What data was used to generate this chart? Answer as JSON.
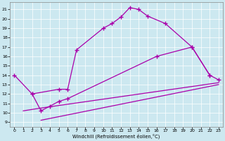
{
  "xlabel": "Windchill (Refroidissement éolien,°C)",
  "bg_color": "#cce8f0",
  "line_color": "#aa00aa",
  "xlim": [
    -0.5,
    23.5
  ],
  "ylim": [
    8.5,
    21.8
  ],
  "yticks": [
    9,
    10,
    11,
    12,
    13,
    14,
    15,
    16,
    17,
    18,
    19,
    20,
    21
  ],
  "xticks": [
    0,
    1,
    2,
    3,
    4,
    5,
    6,
    7,
    8,
    9,
    10,
    11,
    12,
    13,
    14,
    15,
    16,
    17,
    18,
    19,
    20,
    21,
    22,
    23
  ],
  "c1x": [
    0,
    2,
    5,
    6,
    7,
    10,
    11,
    12,
    13,
    14,
    15,
    17,
    20,
    22
  ],
  "c1y": [
    14.0,
    12.0,
    12.5,
    12.5,
    16.7,
    19.0,
    19.5,
    20.2,
    21.2,
    21.0,
    20.3,
    19.5,
    17.0,
    14.0
  ],
  "c2x": [
    2,
    3,
    4,
    5,
    6,
    16,
    20,
    22,
    23
  ],
  "c2y": [
    12.0,
    10.2,
    10.7,
    11.2,
    11.5,
    16.0,
    17.0,
    14.0,
    13.5
  ],
  "c3x": [
    1,
    3,
    23
  ],
  "c3y": [
    10.2,
    10.5,
    13.2
  ],
  "c4x": [
    3,
    23
  ],
  "c4y": [
    9.2,
    13.0
  ]
}
